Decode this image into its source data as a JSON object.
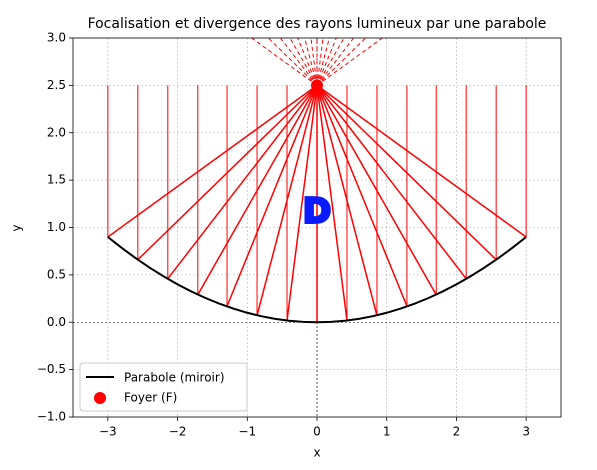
{
  "chart_data": {
    "type": "line",
    "title": "Focalisation et divergence des rayons lumineux par une parabole",
    "xlabel": "x",
    "ylabel": "y",
    "annotation": "D",
    "xlim": [
      -3.5,
      3.5
    ],
    "xticks": [
      {
        "value": -3,
        "label": "−3"
      },
      {
        "value": -2,
        "label": "−2"
      },
      {
        "value": -1,
        "label": "−1"
      },
      0,
      1,
      2,
      3
    ],
    "ylim": [
      -1,
      3
    ],
    "yticks": [
      {
        "value": -1,
        "label": "−1.0"
      },
      {
        "value": -0.5,
        "label": "−0.5"
      },
      {
        "value": 0,
        "label": "0.0"
      },
      {
        "value": 0.5,
        "label": "0.5"
      },
      {
        "value": 1,
        "label": "1.0"
      },
      {
        "value": 1.5,
        "label": "1.5"
      },
      {
        "value": 2,
        "label": "2.0"
      },
      {
        "value": 2.5,
        "label": "2.5"
      },
      {
        "value": 3,
        "label": "3.0"
      }
    ],
    "grid": true,
    "legend": "lower left",
    "series": [
      {
        "name": "Parabole (miroir)",
        "color": "#000000",
        "x": [
          -3,
          -2.8,
          -2.6,
          -2.4,
          -2.2,
          -2,
          -1.8,
          -1.6,
          -1.4,
          -1.2,
          -1,
          -0.8,
          -0.6,
          -0.4,
          -0.2,
          0,
          0.2,
          0.4,
          0.6,
          0.8,
          1,
          1.2,
          1.4,
          1.6,
          1.8,
          2,
          2.2,
          2.4,
          2.6,
          2.8,
          3
        ],
        "values": [
          0.9,
          0.784,
          0.676,
          0.576,
          0.484,
          0.4,
          0.324,
          0.256,
          0.196,
          0.144,
          0.1,
          0.064,
          0.036,
          0.016,
          0.004,
          0,
          0.004,
          0.016,
          0.036,
          0.064,
          0.1,
          0.144,
          0.196,
          0.256,
          0.324,
          0.4,
          0.484,
          0.576,
          0.676,
          0.784,
          0.9
        ]
      },
      {
        "name": "Foyer (F)",
        "color": "#ff0000",
        "x": [
          0
        ],
        "values": [
          2.5
        ]
      }
    ],
    "rays": {
      "color": "#ff0000",
      "y_top": 2.5,
      "x": [
        -3,
        -2.57,
        -2.14,
        -1.71,
        -1.29,
        -0.86,
        -0.43,
        0,
        0.43,
        0.86,
        1.29,
        1.71,
        2.14,
        2.57,
        3
      ],
      "y_hit": [
        0.9,
        0.66,
        0.46,
        0.29,
        0.17,
        0.07,
        0.02,
        0,
        0.02,
        0.07,
        0.17,
        0.29,
        0.46,
        0.66,
        0.9
      ]
    }
  }
}
